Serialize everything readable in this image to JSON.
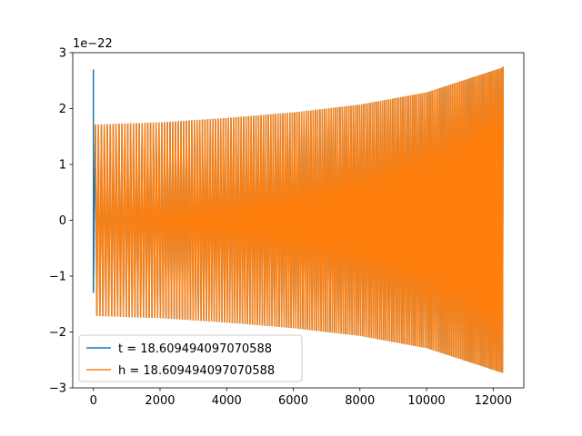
{
  "chart_data": {
    "type": "line",
    "title": "",
    "xlabel": "",
    "ylabel": "",
    "y_offset_label": "1e−22",
    "xlim": [
      -620,
      12920
    ],
    "ylim": [
      -3,
      3
    ],
    "x_ticks": [
      0,
      2000,
      4000,
      6000,
      8000,
      10000,
      12000
    ],
    "x_tick_labels": [
      "0",
      "2000",
      "4000",
      "6000",
      "8000",
      "10000",
      "12000"
    ],
    "y_ticks": [
      -3,
      -2,
      -1,
      0,
      1,
      2,
      3
    ],
    "y_tick_labels": [
      "−3",
      "−2",
      "−1",
      "0",
      "1",
      "2",
      "3"
    ],
    "grid": false,
    "legend_position": "lower-left",
    "series": [
      {
        "name": "t = 18.609494097070588",
        "color": "#1f77b4",
        "x_range": [
          0,
          12300
        ],
        "initial_spike": [
          2.7,
          -1.3
        ],
        "envelope": {
          "x": [
            0,
            2000,
            4000,
            6000,
            8000,
            10000,
            12300
          ],
          "amplitude": [
            1.72,
            1.76,
            1.84,
            1.94,
            2.08,
            2.3,
            2.75
          ]
        }
      },
      {
        "name": "h = 18.609494097070588",
        "color": "#ff7f0e",
        "x_range": [
          0,
          12300
        ],
        "envelope": {
          "x": [
            0,
            2000,
            4000,
            6000,
            8000,
            10000,
            12300
          ],
          "amplitude": [
            1.72,
            1.76,
            1.84,
            1.94,
            2.08,
            2.3,
            2.75
          ]
        }
      }
    ]
  }
}
